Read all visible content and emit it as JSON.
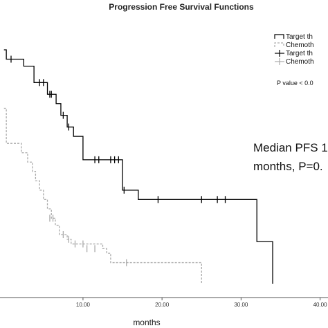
{
  "chart_data": {
    "type": "line",
    "title": "Progression Free Survival Functions",
    "xlabel": "months",
    "ylabel": "",
    "xlim": [
      -0.5,
      41
    ],
    "ylim": [
      0,
      1
    ],
    "x_ticks": [
      {
        "value": 10,
        "label": "10.00"
      },
      {
        "value": 20,
        "label": "20.00"
      },
      {
        "value": 30,
        "label": "30.00"
      },
      {
        "value": 40,
        "label": "40.00"
      }
    ],
    "series": [
      {
        "name": "Target th",
        "color": "#000000",
        "dash": "",
        "steps": [
          [
            0,
            1.0
          ],
          [
            0.3,
            0.96
          ],
          [
            2.5,
            0.93
          ],
          [
            3.8,
            0.86
          ],
          [
            5.5,
            0.81
          ],
          [
            6.6,
            0.77
          ],
          [
            7.2,
            0.72
          ],
          [
            8.0,
            0.67
          ],
          [
            8.8,
            0.63
          ],
          [
            10.0,
            0.53
          ],
          [
            15.0,
            0.4
          ],
          [
            17.0,
            0.36
          ],
          [
            32.0,
            0.18
          ],
          [
            34.0,
            0.0
          ]
        ],
        "end_x": 34.0,
        "censors": [
          [
            0.9,
            0.96
          ],
          [
            4.5,
            0.86
          ],
          [
            5.0,
            0.86
          ],
          [
            5.8,
            0.81
          ],
          [
            6.0,
            0.81
          ],
          [
            7.5,
            0.72
          ],
          [
            8.2,
            0.67
          ],
          [
            11.5,
            0.53
          ],
          [
            12.0,
            0.53
          ],
          [
            13.5,
            0.53
          ],
          [
            14.0,
            0.53
          ],
          [
            14.5,
            0.53
          ],
          [
            15.2,
            0.4
          ],
          [
            19.5,
            0.36
          ],
          [
            25.0,
            0.36
          ],
          [
            27.0,
            0.36
          ],
          [
            28.0,
            0.36
          ]
        ]
      },
      {
        "name": "Chemoth",
        "color": "#aaaaaa",
        "dash": "3,2",
        "steps": [
          [
            0,
            0.75
          ],
          [
            0.3,
            0.6
          ],
          [
            2.2,
            0.56
          ],
          [
            3.0,
            0.52
          ],
          [
            3.6,
            0.48
          ],
          [
            4.0,
            0.44
          ],
          [
            4.5,
            0.4
          ],
          [
            5.0,
            0.36
          ],
          [
            5.5,
            0.32
          ],
          [
            6.0,
            0.28
          ],
          [
            6.5,
            0.25
          ],
          [
            7.0,
            0.21
          ],
          [
            8.0,
            0.19
          ],
          [
            8.5,
            0.17
          ],
          [
            12.5,
            0.15
          ],
          [
            13.0,
            0.13
          ],
          [
            13.5,
            0.09
          ],
          [
            25.0,
            0.0
          ]
        ],
        "end_x": 25.0,
        "censors": [
          [
            5.8,
            0.28
          ],
          [
            6.2,
            0.28
          ],
          [
            7.5,
            0.21
          ],
          [
            8.2,
            0.19
          ],
          [
            9.0,
            0.17
          ],
          [
            10.0,
            0.17
          ],
          [
            10.5,
            0.15
          ],
          [
            11.5,
            0.15
          ],
          [
            15.5,
            0.09
          ]
        ]
      }
    ],
    "legend": {
      "placement": "top-right",
      "entries": [
        {
          "label": "Target th",
          "style": "line",
          "color": "#000000",
          "dash": ""
        },
        {
          "label": "Chemoth",
          "style": "line",
          "color": "#aaaaaa",
          "dash": "3,2"
        },
        {
          "label": "Target th",
          "style": "censor",
          "color": "#000000",
          "dash": ""
        },
        {
          "label": "Chemoth",
          "style": "censor",
          "color": "#aaaaaa",
          "dash": ""
        }
      ]
    },
    "pvalue_text": "P value < 0.0",
    "annotation_lines": [
      "Median PFS 1",
      "months, P=0."
    ]
  }
}
